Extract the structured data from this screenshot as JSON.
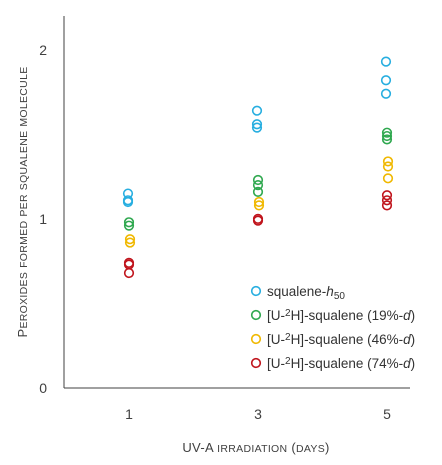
{
  "chart_data": {
    "type": "scatter",
    "title": "",
    "xlabel": "UV-A irradiation (days)",
    "ylabel": "Peroxides formed per squalene molecule",
    "x_ticks": [
      "1",
      "3",
      "5"
    ],
    "y_ticks": [
      "0",
      "1",
      "2"
    ],
    "ylim": [
      0,
      2.2
    ],
    "grid": false,
    "legend_position": "bottom-right",
    "series": [
      {
        "name": "squalene-h50",
        "legend_parts": [
          {
            "t": "squalene-"
          },
          {
            "t": "h",
            "i": true
          },
          {
            "t": "50",
            "sub": true
          }
        ],
        "color": "#27aee0",
        "points": [
          {
            "x": 1,
            "y": 1.15
          },
          {
            "x": 1,
            "y": 1.11
          },
          {
            "x": 1,
            "y": 1.1
          },
          {
            "x": 3,
            "y": 1.64
          },
          {
            "x": 3,
            "y": 1.56
          },
          {
            "x": 3,
            "y": 1.54
          },
          {
            "x": 5,
            "y": 1.93
          },
          {
            "x": 5,
            "y": 1.82
          },
          {
            "x": 5,
            "y": 1.74
          }
        ]
      },
      {
        "name": "[U-2H]-squalene (19%-d)",
        "legend_parts": [
          {
            "t": "[U-"
          },
          {
            "t": "2",
            "sup": true
          },
          {
            "t": "H]-squalene (19%-"
          },
          {
            "t": "d",
            "i": true
          },
          {
            "t": ")"
          }
        ],
        "color": "#2fa84f",
        "points": [
          {
            "x": 1,
            "y": 0.98
          },
          {
            "x": 1,
            "y": 0.96
          },
          {
            "x": 3,
            "y": 1.23
          },
          {
            "x": 3,
            "y": 1.2
          },
          {
            "x": 3,
            "y": 1.16
          },
          {
            "x": 5,
            "y": 1.51
          },
          {
            "x": 5,
            "y": 1.49
          },
          {
            "x": 5,
            "y": 1.47
          }
        ]
      },
      {
        "name": "[U-2H]-squalene (46%-d)",
        "legend_parts": [
          {
            "t": "[U-"
          },
          {
            "t": "2",
            "sup": true
          },
          {
            "t": "H]-squalene (46%-"
          },
          {
            "t": "d",
            "i": true
          },
          {
            "t": ")"
          }
        ],
        "color": "#f0b800",
        "points": [
          {
            "x": 1,
            "y": 0.88
          },
          {
            "x": 1,
            "y": 0.86
          },
          {
            "x": 3,
            "y": 1.1
          },
          {
            "x": 3,
            "y": 1.08
          },
          {
            "x": 5,
            "y": 1.34
          },
          {
            "x": 5,
            "y": 1.31
          },
          {
            "x": 5,
            "y": 1.24
          }
        ]
      },
      {
        "name": "[U-2H]-squalene (74%-d)",
        "legend_parts": [
          {
            "t": "[U-"
          },
          {
            "t": "2",
            "sup": true
          },
          {
            "t": "H]-squalene (74%-"
          },
          {
            "t": "d",
            "i": true
          },
          {
            "t": ")"
          }
        ],
        "color": "#c0141c",
        "points": [
          {
            "x": 1,
            "y": 0.74
          },
          {
            "x": 1,
            "y": 0.73
          },
          {
            "x": 1,
            "y": 0.68
          },
          {
            "x": 3,
            "y": 1.0
          },
          {
            "x": 3,
            "y": 0.99
          },
          {
            "x": 5,
            "y": 1.14
          },
          {
            "x": 5,
            "y": 1.11
          },
          {
            "x": 5,
            "y": 1.08
          }
        ]
      }
    ]
  }
}
